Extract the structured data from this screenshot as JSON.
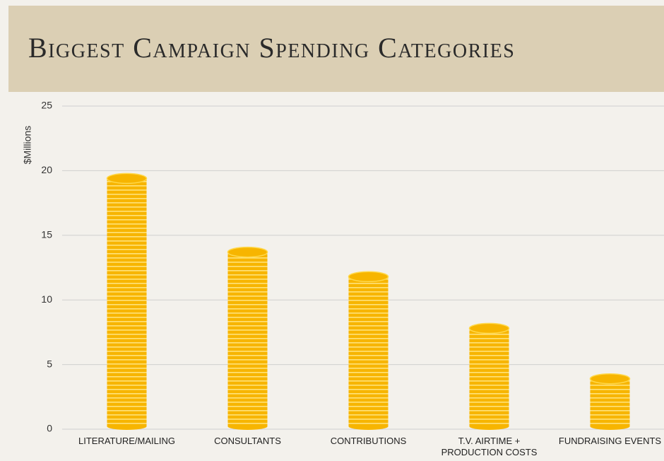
{
  "chart_data": {
    "type": "bar",
    "title": "Biggest Campaign Spending Categories",
    "y_label": "$Millions",
    "categories": [
      "LITERATURE/MAILING",
      "CONSULTANTS",
      "CONTRIBUTIONS",
      "T.V. AIRTIME + PRODUCTION COSTS",
      "FUNDRAISING EVENTS"
    ],
    "values": [
      19.4,
      13.7,
      11.8,
      7.8,
      3.9
    ],
    "color": "#f7b500",
    "ylim": [
      0,
      25
    ],
    "yticks": [
      0,
      5,
      10,
      15,
      20,
      25
    ],
    "grid": true
  }
}
